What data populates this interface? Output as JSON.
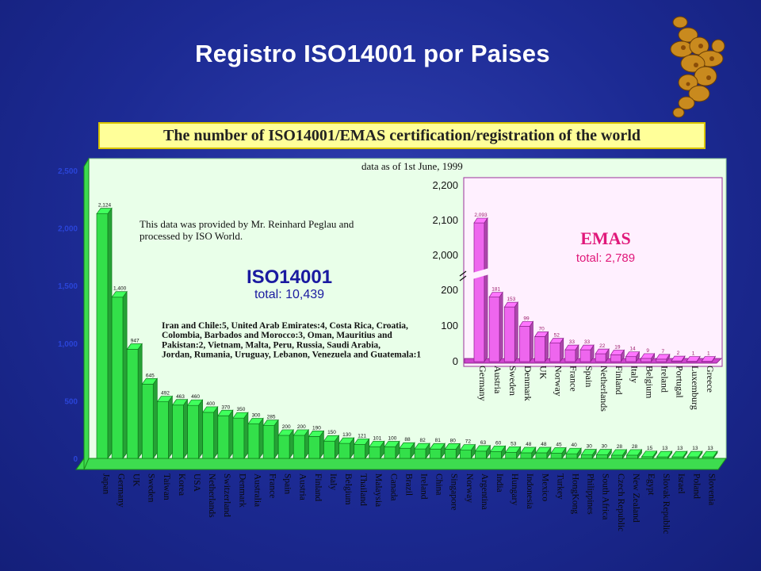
{
  "slide": {
    "title": "Registro ISO14001 por Paises",
    "banner": "The number of ISO14001/EMAS certification/registration of the world"
  },
  "colors": {
    "background": "#1c2a93",
    "iso_bar": "#33e04a",
    "emas_bar": "#ee66ee",
    "panel": "#e9ffe9",
    "emas_panel": "#fff0ff",
    "banner": "#ffff99",
    "axis_labels": "#1a1aa0",
    "iso_title": "#1a1aa0",
    "emas_title": "#e0187a"
  },
  "logo": {
    "icon": "dendrite-mineral-icon"
  },
  "chart_data": [
    {
      "type": "bar",
      "title": "ISO14001",
      "subtitle": "total: 10,439",
      "date_note": "data as of 1st June, 1999",
      "source_note": "This data was provided by Mr. Reinhard Peglau and processed by ISO World.",
      "footnote": "Iran and Chile:5, United Arab Emirates:4, Costa Rica, Croatia, Colombia, Barbados and Morocco:3, Oman, Mauritius and Pakistan:2, Vietnam, Malta, Peru, Russia, Saudi Arabia, Jordan, Rumania, Uruguay, Lebanon, Venezuela and Guatemala:1",
      "ylim": [
        0,
        2500
      ],
      "yticks": [
        "0",
        "500",
        "1,000",
        "1,500",
        "2,000",
        "2,500"
      ],
      "categories": [
        "Japan",
        "Germany",
        "UK",
        "Sweden",
        "Taiwan",
        "Korea",
        "USA",
        "Netherlands",
        "Switzerland",
        "Denmark",
        "Australia",
        "France",
        "Spain",
        "Austria",
        "Finland",
        "Italy",
        "Belgium",
        "Thailand",
        "Malaysia",
        "Canada",
        "Brazil",
        "Ireland",
        "China",
        "Singapore",
        "Norway",
        "Argentina",
        "India",
        "Hungary",
        "Indonesia",
        "Mexico",
        "Turkey",
        "HongKong",
        "Philippines",
        "South Africa",
        "Czech Republic",
        "New Zealand",
        "Egypt",
        "Slovak Republic",
        "Israel",
        "Poland",
        "Slovenia"
      ],
      "values": [
        2124,
        1400,
        947,
        645,
        492,
        463,
        460,
        400,
        370,
        350,
        300,
        285,
        200,
        200,
        190,
        150,
        130,
        121,
        101,
        100,
        88,
        82,
        81,
        80,
        72,
        63,
        60,
        53,
        48,
        48,
        45,
        40,
        30,
        30,
        28,
        28,
        15,
        13,
        13,
        13,
        13
      ],
      "value_labels": [
        "2,124",
        "1,400",
        "947",
        "645",
        "492",
        "463",
        "460",
        "400",
        "370",
        "350",
        "300",
        "285",
        "200",
        "200",
        "190",
        "150",
        "130",
        "121",
        "101",
        "100",
        "88",
        "82",
        "81",
        "80",
        "72",
        "63",
        "60",
        "53",
        "48",
        "48",
        "45",
        "40",
        "30",
        "30",
        "28",
        "28",
        "15",
        "13",
        "13",
        "13",
        "13"
      ]
    },
    {
      "type": "bar",
      "title": "EMAS",
      "subtitle": "total: 2,789",
      "ylim": [
        0,
        2200
      ],
      "axis_break": true,
      "yticks": [
        "0",
        "100",
        "200",
        "2,000",
        "2,100",
        "2,200"
      ],
      "categories": [
        "Germany",
        "Austria",
        "Sweden",
        "Denmark",
        "UK",
        "Norway",
        "France",
        "Spain",
        "Netherlands",
        "Finland",
        "Italy",
        "Belgium",
        "Ireland",
        "Portugal",
        "Luxemburg",
        "Greece"
      ],
      "values": [
        2093,
        181,
        153,
        99,
        70,
        52,
        33,
        33,
        22,
        19,
        14,
        9,
        7,
        2,
        1,
        1
      ],
      "value_labels": [
        "2,093",
        "181",
        "153",
        "99",
        "70",
        "52",
        "33",
        "33",
        "22",
        "19",
        "14",
        "9",
        "7",
        "2",
        "1",
        "1"
      ]
    }
  ]
}
